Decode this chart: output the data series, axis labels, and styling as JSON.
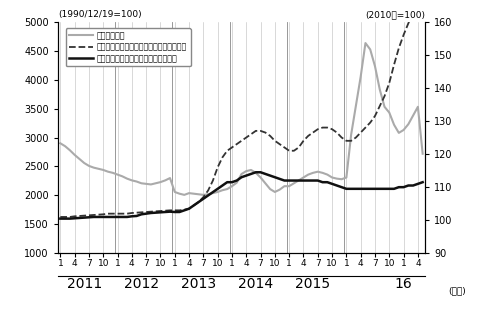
{
  "ylabel_left": "(1990/12/19=100)",
  "ylabel_right": "(2010年=100)",
  "xlabel": "(年月)",
  "ylim_left": [
    1000,
    5000
  ],
  "ylim_right": [
    90,
    160
  ],
  "yticks_left": [
    1000,
    1500,
    2000,
    2500,
    3000,
    3500,
    4000,
    4500,
    5000
  ],
  "yticks_right": [
    90,
    100,
    110,
    120,
    130,
    140,
    150,
    160
  ],
  "legend_labels": [
    "上海総合指数",
    "新筑商品住宅価格指数：一線都市（右軸）",
    "新筑商品住宅価格指数：全国（右軸）"
  ],
  "shanghai": [
    2900,
    2850,
    2780,
    2700,
    2630,
    2560,
    2510,
    2480,
    2460,
    2440,
    2410,
    2390,
    2360,
    2330,
    2290,
    2260,
    2240,
    2210,
    2200,
    2190,
    2210,
    2230,
    2260,
    2300,
    2060,
    2030,
    2010,
    2040,
    2030,
    2020,
    2010,
    2020,
    2040,
    2060,
    2090,
    2110,
    2160,
    2220,
    2370,
    2420,
    2440,
    2390,
    2310,
    2210,
    2110,
    2060,
    2100,
    2160,
    2160,
    2210,
    2260,
    2310,
    2360,
    2390,
    2410,
    2390,
    2360,
    2310,
    2290,
    2280,
    2310,
    3050,
    3550,
    4050,
    4630,
    4520,
    4230,
    3830,
    3530,
    3430,
    3220,
    3080,
    3130,
    3230,
    3380,
    3530,
    2720
  ],
  "tier1": [
    101.0,
    101.0,
    101.0,
    101.2,
    101.3,
    101.4,
    101.5,
    101.6,
    101.7,
    101.8,
    102.0,
    102.0,
    102.0,
    102.0,
    102.0,
    102.2,
    102.3,
    102.4,
    102.5,
    102.6,
    102.7,
    102.8,
    102.9,
    103.0,
    103.0,
    103.0,
    103.2,
    103.5,
    104.5,
    105.5,
    107.0,
    109.0,
    112.0,
    116.0,
    119.0,
    121.0,
    122.0,
    123.0,
    124.0,
    125.0,
    126.0,
    127.0,
    127.0,
    126.5,
    125.5,
    124.0,
    123.0,
    122.0,
    121.0,
    121.0,
    122.0,
    124.0,
    125.5,
    126.5,
    127.5,
    128.0,
    128.0,
    127.5,
    126.5,
    125.0,
    124.0,
    124.0,
    125.0,
    126.5,
    128.0,
    129.5,
    131.5,
    134.5,
    137.5,
    141.5,
    147.0,
    152.0,
    156.0,
    159.5,
    162.5,
    164.5,
    166.0
  ],
  "national": [
    100.5,
    100.5,
    100.5,
    100.6,
    100.7,
    100.8,
    100.9,
    101.0,
    101.0,
    101.0,
    101.0,
    101.0,
    101.0,
    101.0,
    101.0,
    101.2,
    101.3,
    101.8,
    102.0,
    102.2,
    102.3,
    102.4,
    102.5,
    102.6,
    102.5,
    102.5,
    103.0,
    103.5,
    104.5,
    105.5,
    106.5,
    107.5,
    108.5,
    109.5,
    110.5,
    111.5,
    111.5,
    112.0,
    113.0,
    113.5,
    114.0,
    114.5,
    114.5,
    114.0,
    113.5,
    113.0,
    112.5,
    112.0,
    112.0,
    112.0,
    112.0,
    112.0,
    112.0,
    112.0,
    112.0,
    111.5,
    111.5,
    111.0,
    110.5,
    110.0,
    109.5,
    109.5,
    109.5,
    109.5,
    109.5,
    109.5,
    109.5,
    109.5,
    109.5,
    109.5,
    109.5,
    110.0,
    110.0,
    110.5,
    110.5,
    111.0,
    111.5
  ],
  "n_points": 77,
  "shanghai_color": "#aaaaaa",
  "tier1_color": "#333333",
  "national_color": "#111111",
  "bg_color": "#e8e8e8",
  "plot_bg": "#ffffff"
}
